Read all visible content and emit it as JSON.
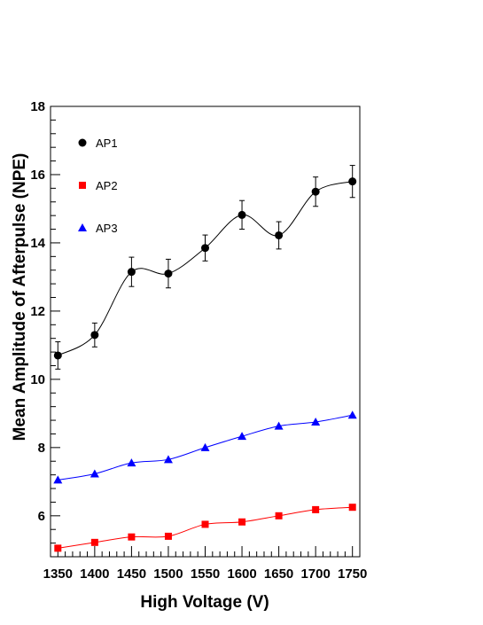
{
  "chart_data": {
    "type": "line",
    "xlabel": "High Voltage (V)",
    "ylabel": "Mean Amplitude of Afterpulse (NPE)",
    "x": [
      1350,
      1400,
      1450,
      1500,
      1550,
      1600,
      1650,
      1700,
      1750
    ],
    "xlim": [
      1340,
      1760
    ],
    "ylim": [
      4.8,
      18
    ],
    "x_ticks": [
      1350,
      1400,
      1450,
      1500,
      1550,
      1600,
      1650,
      1700,
      1750
    ],
    "y_ticks": [
      6,
      8,
      10,
      12,
      14,
      16,
      18
    ],
    "legend_position": "top-left",
    "grid": false,
    "series": [
      {
        "name": "AP1",
        "color": "#000000",
        "marker": "circle",
        "values": [
          10.7,
          11.3,
          13.15,
          13.1,
          13.85,
          14.82,
          14.22,
          15.5,
          15.8
        ],
        "errors": [
          0.4,
          0.35,
          0.43,
          0.42,
          0.38,
          0.42,
          0.4,
          0.43,
          0.47
        ]
      },
      {
        "name": "AP2",
        "color": "#ff0000",
        "marker": "square",
        "values": [
          5.05,
          5.22,
          5.38,
          5.4,
          5.75,
          5.82,
          6.0,
          6.18,
          6.25
        ],
        "errors": []
      },
      {
        "name": "AP3",
        "color": "#0000ff",
        "marker": "triangle",
        "values": [
          7.05,
          7.23,
          7.55,
          7.65,
          8.0,
          8.33,
          8.63,
          8.75,
          8.95
        ],
        "errors": []
      }
    ]
  }
}
